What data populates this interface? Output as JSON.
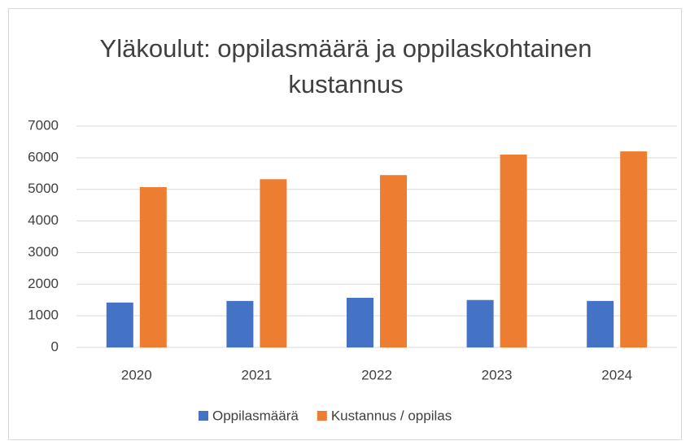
{
  "chart_data": {
    "type": "bar",
    "title": "Yläkoulut: oppilasmäärä ja oppilaskohtainen kustannus",
    "categories": [
      "2020",
      "2021",
      "2022",
      "2023",
      "2024"
    ],
    "series": [
      {
        "name": "Oppilasmäärä",
        "color": "#4472c4",
        "values": [
          1420,
          1470,
          1570,
          1500,
          1470
        ]
      },
      {
        "name": "Kustannus / oppilas",
        "color": "#ed7d31",
        "values": [
          5070,
          5320,
          5450,
          6100,
          6200
        ]
      }
    ],
    "ylim": [
      0,
      7000
    ],
    "yticks": [
      0,
      1000,
      2000,
      3000,
      4000,
      5000,
      6000,
      7000
    ],
    "grid": true,
    "legend": "bottom"
  }
}
